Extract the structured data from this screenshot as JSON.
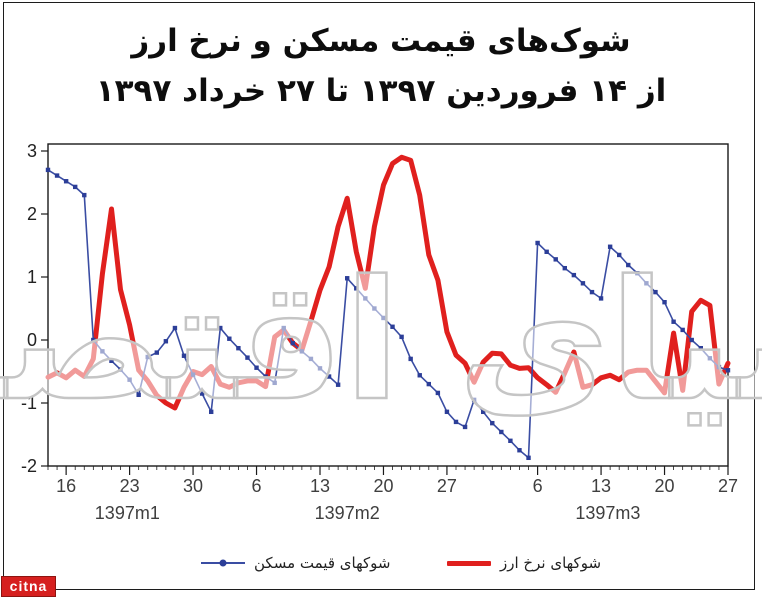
{
  "page": {
    "title_line1": "شوک‌های قیمت مسکن و نرخ ارز",
    "title_line2": "از ۱۴ فروردین ۱۳۹۷ تا ۲۷ خرداد ۱۳۹۷",
    "watermark": "دنیای اقتصاد",
    "logo_text": "citna"
  },
  "colors": {
    "housing_line": "#3a4da3",
    "housing_marker": "#2c3e98",
    "fx_line": "#e0201e",
    "axis": "#1a1a1a",
    "tick_text": "#3f3f3f",
    "watermark": "#c5c5c5",
    "logo_bg": "#d6201f"
  },
  "chart_data": {
    "type": "line",
    "grid": false,
    "legend_position": "bottom",
    "n_points": 76,
    "x_unit": "day",
    "ylim": [
      -2,
      3
    ],
    "yticks": [
      3,
      2,
      1,
      0,
      -1,
      -2
    ],
    "x_major_ticks": [
      {
        "index": 2,
        "label": "16"
      },
      {
        "index": 9,
        "label": "23"
      },
      {
        "index": 16,
        "label": "30"
      },
      {
        "index": 23,
        "label": "6"
      },
      {
        "index": 30,
        "label": "13"
      },
      {
        "index": 37,
        "label": "20"
      },
      {
        "index": 44,
        "label": "27"
      },
      {
        "index": 54,
        "label": "6"
      },
      {
        "index": 61,
        "label": "13"
      },
      {
        "index": 68,
        "label": "20"
      },
      {
        "index": 75,
        "label": "27"
      }
    ],
    "x_month_labels": [
      {
        "label": "1397m1",
        "span": [
          0,
          17.5
        ]
      },
      {
        "label": "1397m2",
        "span": [
          17.5,
          48.5
        ]
      },
      {
        "label": "1397m3",
        "span": [
          48.5,
          75
        ]
      }
    ],
    "series": [
      {
        "name": "شوکهای قیمت مسکن",
        "color": "#3a4da3",
        "marker": "square",
        "line_width": 1.6,
        "values": [
          2.7,
          2.61,
          2.52,
          2.43,
          2.3,
          0.0,
          -0.18,
          -0.33,
          -0.47,
          -0.63,
          -0.87,
          -0.27,
          -0.2,
          -0.02,
          0.19,
          -0.25,
          -0.55,
          -0.85,
          -1.14,
          0.19,
          0.02,
          -0.13,
          -0.28,
          -0.44,
          -0.58,
          -0.68,
          0.19,
          -0.05,
          -0.18,
          -0.3,
          -0.45,
          -0.58,
          -0.71,
          0.98,
          0.82,
          0.66,
          0.5,
          0.35,
          0.21,
          0.05,
          -0.3,
          -0.56,
          -0.7,
          -0.84,
          -1.14,
          -1.3,
          -1.38,
          -0.95,
          -1.14,
          -1.32,
          -1.46,
          -1.6,
          -1.75,
          -1.87,
          1.54,
          1.4,
          1.28,
          1.14,
          1.03,
          0.9,
          0.76,
          0.66,
          1.48,
          1.35,
          1.19,
          1.06,
          0.9,
          0.76,
          0.6,
          0.29,
          0.16,
          0.0,
          -0.13,
          -0.29,
          -0.43,
          -0.48
        ]
      },
      {
        "name": "شوکهای نرخ ارز",
        "color": "#e0201e",
        "marker": "none",
        "line_width": 5,
        "values": [
          -0.59,
          -0.52,
          -0.6,
          -0.48,
          -0.58,
          -0.3,
          1.05,
          2.08,
          0.8,
          0.24,
          -0.48,
          -0.65,
          -0.88,
          -1.0,
          -1.08,
          -0.75,
          -0.5,
          -0.55,
          -0.42,
          -0.7,
          -0.75,
          -0.68,
          -0.65,
          -0.65,
          -0.74,
          0.05,
          0.16,
          -0.05,
          -0.16,
          0.3,
          0.79,
          1.16,
          1.8,
          2.25,
          1.4,
          0.82,
          1.8,
          2.46,
          2.8,
          2.9,
          2.85,
          2.3,
          1.35,
          0.95,
          0.13,
          -0.24,
          -0.37,
          -0.67,
          -0.35,
          -0.21,
          -0.22,
          -0.4,
          -0.45,
          -0.44,
          -0.6,
          -0.71,
          -0.83,
          -0.52,
          -0.19,
          -0.75,
          -0.71,
          -0.6,
          -0.56,
          -0.63,
          -0.51,
          -0.48,
          -0.48,
          -0.66,
          -0.84,
          0.11,
          -0.8,
          0.45,
          0.63,
          0.55,
          -0.7,
          -0.37
        ]
      }
    ]
  }
}
